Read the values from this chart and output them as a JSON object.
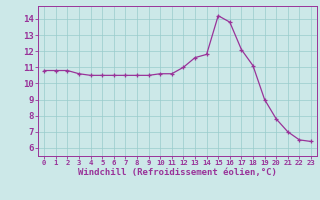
{
  "x": [
    0,
    1,
    2,
    3,
    4,
    5,
    6,
    7,
    8,
    9,
    10,
    11,
    12,
    13,
    14,
    15,
    16,
    17,
    18,
    19,
    20,
    21,
    22,
    23
  ],
  "y": [
    10.8,
    10.8,
    10.8,
    10.6,
    10.5,
    10.5,
    10.5,
    10.5,
    10.5,
    10.5,
    10.6,
    10.6,
    11.0,
    11.6,
    11.8,
    14.2,
    13.8,
    12.1,
    11.1,
    9.0,
    7.8,
    7.0,
    6.5,
    6.4
  ],
  "line_color": "#993399",
  "marker": "+",
  "marker_size": 3,
  "bg_color": "#cce8e8",
  "grid_color": "#99cccc",
  "xlabel": "Windchill (Refroidissement éolien,°C)",
  "ylim": [
    5.5,
    14.8
  ],
  "xlim": [
    -0.5,
    23.5
  ],
  "yticks": [
    6,
    7,
    8,
    9,
    10,
    11,
    12,
    13,
    14
  ],
  "xticks": [
    0,
    1,
    2,
    3,
    4,
    5,
    6,
    7,
    8,
    9,
    10,
    11,
    12,
    13,
    14,
    15,
    16,
    17,
    18,
    19,
    20,
    21,
    22,
    23
  ],
  "tick_color": "#993399",
  "label_color": "#993399",
  "axis_color": "#993399",
  "xlabel_fontsize": 6.5,
  "xtick_fontsize": 5.2,
  "ytick_fontsize": 6.5
}
